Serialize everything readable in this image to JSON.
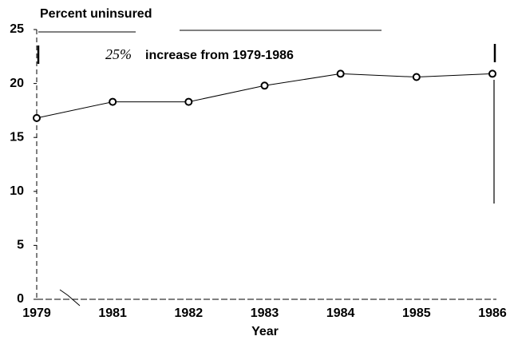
{
  "chart_data": {
    "type": "line",
    "title": "Percent uninsured",
    "annotation": [
      "25%",
      "increase from 1979-1986"
    ],
    "xlabel": "Year",
    "categories": [
      "1979",
      "1981",
      "1982",
      "1983",
      "1984",
      "1985",
      "1986"
    ],
    "values": [
      16.8,
      18.3,
      18.3,
      19.8,
      20.9,
      20.6,
      20.9
    ],
    "color": "#000000",
    "ylim": [
      0,
      25
    ],
    "yticks": [
      0,
      5,
      10,
      15,
      20,
      25
    ]
  }
}
